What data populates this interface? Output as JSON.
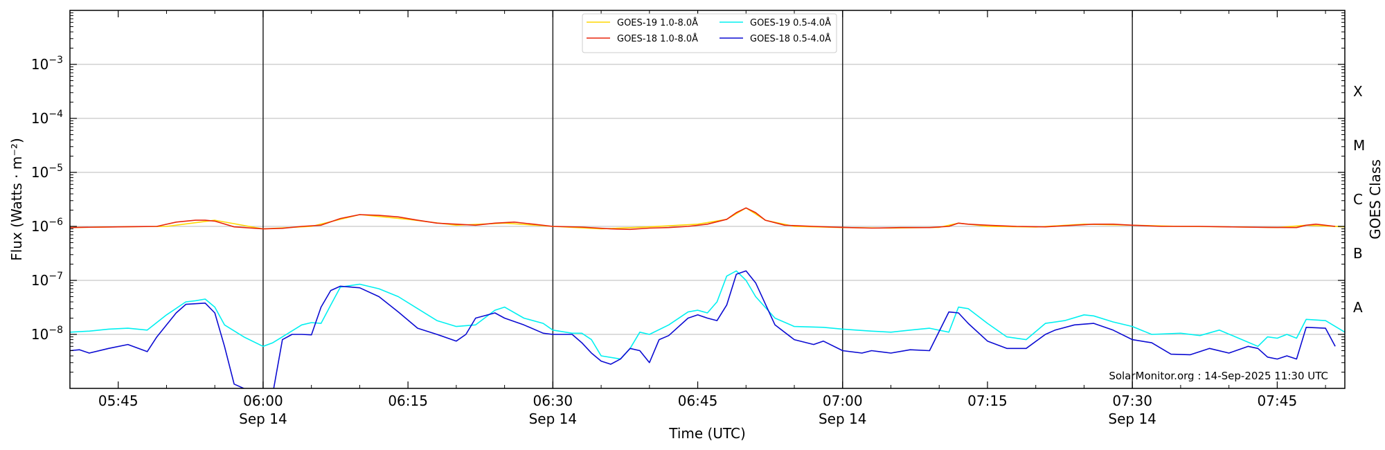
{
  "chart_data": {
    "type": "line",
    "xlabel": "Time (UTC)",
    "ylabel": "Flux (Watts · m⁻²)",
    "ylabel_right": "GOES Class",
    "ylim": [
      1e-09,
      0.01
    ],
    "y_scale": "log",
    "xlim": [
      "05:40",
      "07:52"
    ],
    "grid": "horizontal",
    "legend_position": "top-center",
    "credit": "SolarMonitor.org : 14-Sep-2025 11:30 UTC",
    "x_ticks": [
      {
        "t": "05:45",
        "label": "05:45",
        "date": ""
      },
      {
        "t": "06:00",
        "label": "06:00",
        "date": "Sep 14"
      },
      {
        "t": "06:15",
        "label": "06:15",
        "date": ""
      },
      {
        "t": "06:30",
        "label": "06:30",
        "date": "Sep 14"
      },
      {
        "t": "06:45",
        "label": "06:45",
        "date": ""
      },
      {
        "t": "07:00",
        "label": "07:00",
        "date": "Sep 14"
      },
      {
        "t": "07:15",
        "label": "07:15",
        "date": ""
      },
      {
        "t": "07:30",
        "label": "07:30",
        "date": "Sep 14"
      },
      {
        "t": "07:45",
        "label": "07:45",
        "date": ""
      }
    ],
    "y_ticks": [
      {
        "value": 1e-08,
        "base": "10",
        "exp": "−8"
      },
      {
        "value": 1e-07,
        "base": "10",
        "exp": "−7"
      },
      {
        "value": 1e-06,
        "base": "10",
        "exp": "−6"
      },
      {
        "value": 1e-05,
        "base": "10",
        "exp": "−5"
      },
      {
        "value": 0.0001,
        "base": "10",
        "exp": "−4"
      },
      {
        "value": 0.001,
        "base": "10",
        "exp": "−3"
      }
    ],
    "vlines": [
      "06:00",
      "06:30",
      "07:00",
      "07:30"
    ],
    "class_labels": [
      {
        "label": "A",
        "value": 3.16e-08
      },
      {
        "label": "B",
        "value": 3.16e-07
      },
      {
        "label": "C",
        "value": 3.16e-06
      },
      {
        "label": "M",
        "value": 3.16e-05
      },
      {
        "label": "X",
        "value": 0.000316
      }
    ],
    "series": [
      {
        "name": "GOES-19 1.0-8.0Å",
        "color": "#ffd700",
        "x": [
          "05:40",
          "05:45",
          "05:50",
          "05:55",
          "06:00",
          "06:05",
          "06:10",
          "06:15",
          "06:20",
          "06:25",
          "06:30",
          "06:35",
          "06:40",
          "06:45",
          "06:48",
          "06:50",
          "06:52",
          "06:55",
          "07:00",
          "07:05",
          "07:10",
          "07:12",
          "07:15",
          "07:20",
          "07:25",
          "07:30",
          "07:35",
          "07:40",
          "07:45",
          "07:48",
          "07:52"
        ],
        "y": [
          9.5e-07,
          9.8e-07,
          1e-06,
          1.3e-06,
          9e-07,
          1e-06,
          1.65e-06,
          1.35e-06,
          1.05e-06,
          1.15e-06,
          1e-06,
          9e-07,
          9.8e-07,
          1.1e-06,
          1.35e-06,
          2.2e-06,
          1.3e-06,
          1e-06,
          9.5e-07,
          9.3e-07,
          9.6e-07,
          1.15e-06,
          1e-06,
          9.7e-07,
          1.1e-06,
          1.05e-06,
          1e-06,
          9.8e-07,
          9.5e-07,
          1.05e-06,
          9.8e-07
        ]
      },
      {
        "name": "GOES-18 1.0-8.0Å",
        "color": "#e8250c",
        "x": [
          "05:40",
          "05:41",
          "05:45",
          "05:47",
          "05:49",
          "05:51",
          "05:53",
          "05:54",
          "05:55",
          "05:57",
          "06:00",
          "06:02",
          "06:04",
          "06:06",
          "06:08",
          "06:10",
          "06:12",
          "06:14",
          "06:16",
          "06:18",
          "06:20",
          "06:22",
          "06:24",
          "06:26",
          "06:28",
          "06:30",
          "06:33",
          "06:36",
          "06:38",
          "06:40",
          "06:42",
          "06:44",
          "06:46",
          "06:48",
          "06:49",
          "06:50",
          "06:51",
          "06:52",
          "06:54",
          "06:57",
          "07:00",
          "07:03",
          "07:06",
          "07:09",
          "07:11",
          "07:12",
          "07:13",
          "07:15",
          "07:18",
          "07:21",
          "07:24",
          "07:26",
          "07:28",
          "07:30",
          "07:33",
          "07:37",
          "07:40",
          "07:44",
          "07:47",
          "07:48",
          "07:49",
          "07:51"
        ],
        "y": [
          9.5e-07,
          9.6e-07,
          9.8e-07,
          9.9e-07,
          1e-06,
          1.2e-06,
          1.3e-06,
          1.3e-06,
          1.25e-06,
          9.8e-07,
          9e-07,
          9.2e-07,
          1e-06,
          1.05e-06,
          1.4e-06,
          1.65e-06,
          1.6e-06,
          1.5e-06,
          1.3e-06,
          1.15e-06,
          1.1e-06,
          1.05e-06,
          1.15e-06,
          1.2e-06,
          1.1e-06,
          1e-06,
          9.7e-07,
          9e-07,
          8.8e-07,
          9.3e-07,
          9.5e-07,
          1e-06,
          1.1e-06,
          1.35e-06,
          1.8e-06,
          2.2e-06,
          1.8e-06,
          1.3e-06,
          1.05e-06,
          1e-06,
          9.6e-07,
          9.3e-07,
          9.5e-07,
          9.5e-07,
          1e-06,
          1.15e-06,
          1.1e-06,
          1.05e-06,
          1e-06,
          9.8e-07,
          1.05e-06,
          1.1e-06,
          1.1e-06,
          1.05e-06,
          1e-06,
          1e-06,
          9.8e-07,
          9.6e-07,
          9.5e-07,
          1.05e-06,
          1.1e-06,
          1e-06
        ]
      },
      {
        "name": "GOES-19 0.5-4.0Å",
        "color": "#00f0f0",
        "x": [
          "05:40",
          "05:42",
          "05:44",
          "05:46",
          "05:48",
          "05:50",
          "05:52",
          "05:53",
          "05:54",
          "05:55",
          "05:56",
          "05:58",
          "06:00",
          "06:01",
          "06:02",
          "06:04",
          "06:05",
          "06:06",
          "06:07",
          "06:08",
          "06:10",
          "06:12",
          "06:14",
          "06:16",
          "06:18",
          "06:20",
          "06:21",
          "06:22",
          "06:24",
          "06:25",
          "06:27",
          "06:29",
          "06:30",
          "06:32",
          "06:33",
          "06:34",
          "06:35",
          "06:37",
          "06:38",
          "06:39",
          "06:40",
          "06:42",
          "06:44",
          "06:45",
          "06:46",
          "06:47",
          "06:48",
          "06:49",
          "06:50",
          "06:51",
          "06:53",
          "06:55",
          "06:58",
          "07:00",
          "07:03",
          "07:05",
          "07:07",
          "07:09",
          "07:11",
          "07:12",
          "07:13",
          "07:15",
          "07:17",
          "07:19",
          "07:21",
          "07:23",
          "07:25",
          "07:26",
          "07:28",
          "07:30",
          "07:32",
          "07:35",
          "07:37",
          "07:39",
          "07:41",
          "07:43",
          "07:44",
          "07:45",
          "07:46",
          "07:47",
          "07:48",
          "07:50",
          "07:52"
        ],
        "y": [
          1.1e-08,
          1.15e-08,
          1.25e-08,
          1.3e-08,
          1.2e-08,
          2.3e-08,
          4e-08,
          4.2e-08,
          4.5e-08,
          3.2e-08,
          1.5e-08,
          9e-09,
          6e-09,
          7e-09,
          9e-09,
          1.5e-08,
          1.65e-08,
          1.6e-08,
          3.5e-08,
          7.5e-08,
          8.5e-08,
          7e-08,
          5e-08,
          3e-08,
          1.8e-08,
          1.4e-08,
          1.45e-08,
          1.5e-08,
          2.8e-08,
          3.2e-08,
          2e-08,
          1.6e-08,
          1.2e-08,
          1.05e-08,
          1.05e-08,
          8e-09,
          4e-09,
          3.5e-09,
          5.5e-09,
          1.1e-08,
          1e-08,
          1.5e-08,
          2.6e-08,
          2.8e-08,
          2.5e-08,
          4e-08,
          1.2e-07,
          1.5e-07,
          1e-07,
          5e-08,
          2e-08,
          1.4e-08,
          1.35e-08,
          1.25e-08,
          1.15e-08,
          1.1e-08,
          1.2e-08,
          1.3e-08,
          1.1e-08,
          3.2e-08,
          3e-08,
          1.6e-08,
          9e-09,
          8e-09,
          1.6e-08,
          1.8e-08,
          2.3e-08,
          2.2e-08,
          1.7e-08,
          1.4e-08,
          1e-08,
          1.05e-08,
          9.5e-09,
          1.2e-08,
          8.5e-09,
          6e-09,
          9e-09,
          8.5e-09,
          1e-08,
          8.5e-09,
          1.9e-08,
          1.8e-08,
          1.1e-08
        ]
      },
      {
        "name": "GOES-18 0.5-4.0Å",
        "color": "#0a0ad2",
        "x": [
          "05:40",
          "05:41",
          "05:42",
          "05:44",
          "05:46",
          "05:48",
          "05:49",
          "05:51",
          "05:52",
          "05:53",
          "05:54",
          "05:55",
          "05:56",
          "05:57",
          "05:58",
          "06:00",
          "06:01",
          "06:02",
          "06:03",
          "06:04",
          "06:05",
          "06:06",
          "06:07",
          "06:08",
          "06:10",
          "06:12",
          "06:14",
          "06:16",
          "06:18",
          "06:20",
          "06:21",
          "06:22",
          "06:24",
          "06:25",
          "06:27",
          "06:29",
          "06:30",
          "06:32",
          "06:33",
          "06:34",
          "06:35",
          "06:36",
          "06:37",
          "06:38",
          "06:39",
          "06:40",
          "06:41",
          "06:42",
          "06:44",
          "06:45",
          "06:46",
          "06:47",
          "06:48",
          "06:49",
          "06:50",
          "06:51",
          "06:53",
          "06:55",
          "06:57",
          "06:58",
          "07:00",
          "07:02",
          "07:03",
          "07:05",
          "07:07",
          "07:09",
          "07:11",
          "07:12",
          "07:13",
          "07:15",
          "07:17",
          "07:19",
          "07:21",
          "07:22",
          "07:24",
          "07:26",
          "07:28",
          "07:30",
          "07:32",
          "07:34",
          "07:36",
          "07:38",
          "07:40",
          "07:42",
          "07:43",
          "07:44",
          "07:45",
          "07:46",
          "07:47",
          "07:48",
          "07:50",
          "07:51"
        ],
        "y": [
          5e-09,
          5.2e-09,
          4.5e-09,
          5.5e-09,
          6.5e-09,
          4.8e-09,
          9e-09,
          2.5e-08,
          3.6e-08,
          3.7e-08,
          3.8e-08,
          2.5e-08,
          6e-09,
          1.2e-09,
          1e-09,
          7e-10,
          8e-10,
          8e-09,
          1e-08,
          1e-08,
          9.8e-09,
          3.2e-08,
          6.5e-08,
          7.8e-08,
          7.3e-08,
          5e-08,
          2.6e-08,
          1.3e-08,
          1e-08,
          7.5e-09,
          1e-08,
          2e-08,
          2.5e-08,
          2e-08,
          1.5e-08,
          1.05e-08,
          1e-08,
          1e-08,
          7e-09,
          4.5e-09,
          3.2e-09,
          2.8e-09,
          3.5e-09,
          5.5e-09,
          5e-09,
          3e-09,
          8e-09,
          9.5e-09,
          2e-08,
          2.3e-08,
          2e-08,
          1.8e-08,
          3.5e-08,
          1.3e-07,
          1.5e-07,
          9e-08,
          1.5e-08,
          8e-09,
          6.5e-09,
          7.5e-09,
          5e-09,
          4.5e-09,
          5e-09,
          4.5e-09,
          5.2e-09,
          5e-09,
          2.6e-08,
          2.5e-08,
          1.6e-08,
          7.5e-09,
          5.5e-09,
          5.5e-09,
          1e-08,
          1.2e-08,
          1.5e-08,
          1.6e-08,
          1.2e-08,
          8e-09,
          7e-09,
          4.3e-09,
          4.2e-09,
          5.5e-09,
          4.5e-09,
          6e-09,
          5.5e-09,
          3.8e-09,
          3.5e-09,
          4e-09,
          3.5e-09,
          1.35e-08,
          1.3e-08,
          6e-09
        ]
      }
    ]
  }
}
